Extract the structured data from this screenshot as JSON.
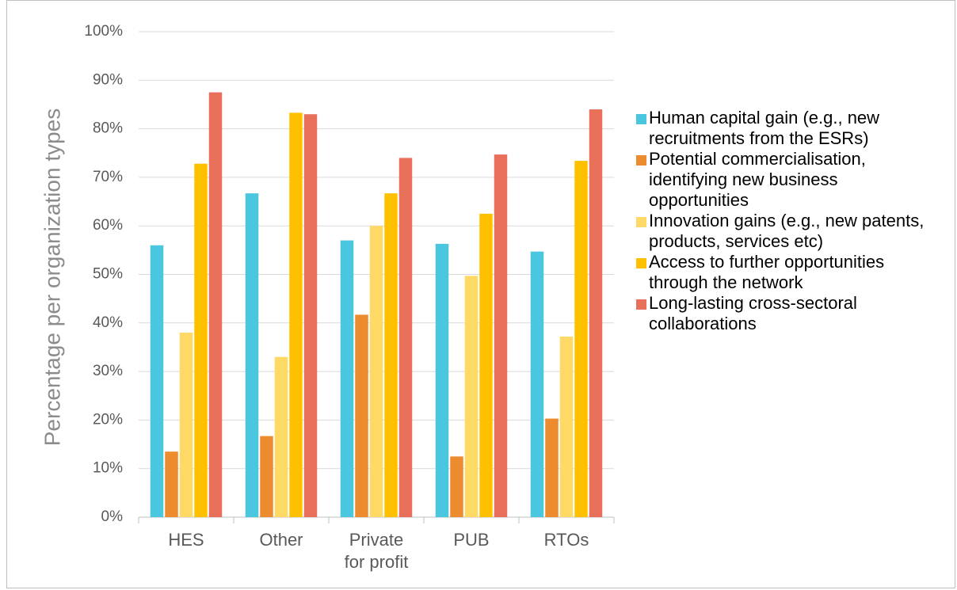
{
  "chart_data": {
    "type": "bar",
    "ylabel": "Percentage per organization types",
    "categories": [
      "HES",
      "Other",
      "Private for profit",
      "PUB",
      "RTOs"
    ],
    "series": [
      {
        "name": "Human capital gain (e.g., new recruitments from the ESRs)",
        "color": "#4BC6DF",
        "values": [
          56,
          66.7,
          57,
          56.3,
          54.7
        ]
      },
      {
        "name": "Potential commercialisation, identifying new business opportunities",
        "color": "#ED8B2F",
        "values": [
          13.5,
          16.7,
          41.7,
          12.5,
          20.3
        ]
      },
      {
        "name": "Innovation gains (e.g., new patents, products, services etc)",
        "color": "#FFD966",
        "values": [
          38,
          33,
          60,
          49.7,
          37.2
        ]
      },
      {
        "name": "Access to further opportunities through the network",
        "color": "#FFC000",
        "values": [
          72.8,
          83.3,
          66.7,
          62.5,
          73.4
        ]
      },
      {
        "name": "Long-lasting cross-sectoral collaborations",
        "color": "#E8705A",
        "values": [
          87.5,
          83,
          74,
          74.7,
          84
        ]
      }
    ],
    "ylim": [
      0,
      100
    ],
    "yticks": [
      {
        "value": 0,
        "label": "0%"
      },
      {
        "value": 10,
        "label": "10%"
      },
      {
        "value": 20,
        "label": "20%"
      },
      {
        "value": 30,
        "label": "30%"
      },
      {
        "value": 40,
        "label": "40%"
      },
      {
        "value": 50,
        "label": "50%"
      },
      {
        "value": 60,
        "label": "60%"
      },
      {
        "value": 70,
        "label": "70%"
      },
      {
        "value": 80,
        "label": "80%"
      },
      {
        "value": 90,
        "label": "90%"
      },
      {
        "value": 100,
        "label": "100%"
      }
    ],
    "grid": true,
    "legend": "right"
  }
}
